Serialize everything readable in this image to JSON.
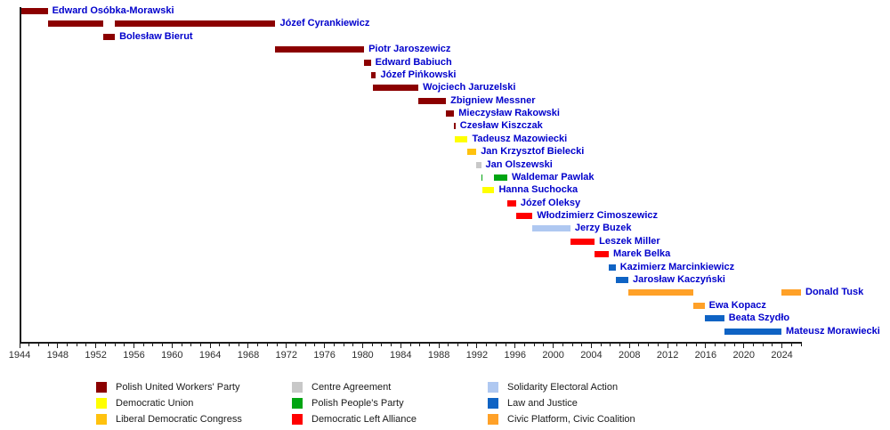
{
  "chart_data": {
    "type": "timeline",
    "title": "Prime Ministers of Poland by term and party",
    "x_axis": {
      "start": 1944,
      "end": 2026,
      "major_tick_step": 4,
      "minor_tick_step": 1,
      "tick_labels": [
        "1944",
        "1948",
        "1952",
        "1956",
        "1960",
        "1964",
        "1968",
        "1972",
        "1976",
        "1980",
        "1984",
        "1988",
        "1992",
        "1996",
        "2000",
        "2004",
        "2008",
        "2012",
        "2016",
        "2020",
        "2024"
      ]
    },
    "label_color": "#0000CC",
    "axis_color": "#1a1a1a",
    "parties": {
      "puwp": {
        "name": "Polish United Workers' Party",
        "color": "#8B0000"
      },
      "ud": {
        "name": "Democratic Union",
        "color": "#FFFF00"
      },
      "kld": {
        "name": "Liberal Democratic Congress",
        "color": "#FFC20E"
      },
      "pc": {
        "name": "Centre Agreement",
        "color": "#C8C8C8"
      },
      "psl": {
        "name": "Polish People's Party",
        "color": "#00A512"
      },
      "sld": {
        "name": "Democratic Left Alliance",
        "color": "#FF0000"
      },
      "aws": {
        "name": "Solidarity Electoral Action",
        "color": "#AFC8F1"
      },
      "pis": {
        "name": "Law and Justice",
        "color": "#0F63C4"
      },
      "po": {
        "name": "Civic Platform, Civic Coalition",
        "color": "#FFA128"
      }
    },
    "legend_columns": [
      [
        "puwp",
        "ud",
        "kld"
      ],
      [
        "pc",
        "psl",
        "sld"
      ],
      [
        "aws",
        "pis",
        "po"
      ]
    ],
    "rows": [
      {
        "name": "Edward Osóbka-Morawski",
        "party": "puwp",
        "terms": [
          [
            1944.2,
            1946.95
          ]
        ]
      },
      {
        "name": "Józef Cyrankiewicz",
        "party": "puwp",
        "terms": [
          [
            1946.95,
            1952.75
          ],
          [
            1954.0,
            1970.85
          ]
        ]
      },
      {
        "name": "Bolesław Bierut",
        "party": "puwp",
        "terms": [
          [
            1952.75,
            1954.0
          ]
        ]
      },
      {
        "name": "Piotr Jaroszewicz",
        "party": "puwp",
        "terms": [
          [
            1970.85,
            1980.15
          ]
        ]
      },
      {
        "name": "Edward Babiuch",
        "party": "puwp",
        "terms": [
          [
            1980.15,
            1980.85
          ]
        ]
      },
      {
        "name": "Józef Pińkowski",
        "party": "puwp",
        "terms": [
          [
            1980.85,
            1981.4
          ]
        ]
      },
      {
        "name": "Wojciech Jaruzelski",
        "party": "puwp",
        "terms": [
          [
            1981.1,
            1985.85
          ]
        ]
      },
      {
        "name": "Zbigniew Messner",
        "party": "puwp",
        "terms": [
          [
            1985.85,
            1988.75
          ]
        ]
      },
      {
        "name": "Mieczysław Rakowski",
        "party": "puwp",
        "terms": [
          [
            1988.75,
            1989.6
          ]
        ]
      },
      {
        "name": "Czesław Kiszczak",
        "party": "puwp",
        "terms": [
          [
            1989.6,
            1989.72
          ]
        ]
      },
      {
        "name": "Tadeusz Mazowiecki",
        "party": "ud",
        "terms": [
          [
            1989.65,
            1991.02
          ]
        ]
      },
      {
        "name": "Jan Krzysztof Bielecki",
        "party": "kld",
        "terms": [
          [
            1991.02,
            1991.93
          ]
        ]
      },
      {
        "name": "Jan Olszewski",
        "party": "pc",
        "terms": [
          [
            1991.93,
            1992.43
          ]
        ]
      },
      {
        "name": "Waldemar Pawlak",
        "party": "psl",
        "terms": [
          [
            1992.43,
            1992.55
          ],
          [
            1993.82,
            1995.18
          ]
        ]
      },
      {
        "name": "Hanna Suchocka",
        "party": "ud",
        "terms": [
          [
            1992.55,
            1993.82
          ]
        ]
      },
      {
        "name": "Józef Oleksy",
        "party": "sld",
        "terms": [
          [
            1995.18,
            1996.1
          ]
        ]
      },
      {
        "name": "Włodzimierz Cimoszewicz",
        "party": "sld",
        "terms": [
          [
            1996.1,
            1997.83
          ]
        ]
      },
      {
        "name": "Jerzy Buzek",
        "party": "aws",
        "terms": [
          [
            1997.83,
            2001.8
          ]
        ]
      },
      {
        "name": "Leszek Miller",
        "party": "sld",
        "terms": [
          [
            2001.8,
            2004.35
          ]
        ]
      },
      {
        "name": "Marek Belka",
        "party": "sld",
        "terms": [
          [
            2004.35,
            2005.83
          ]
        ]
      },
      {
        "name": "Kazimierz Marcinkiewicz",
        "party": "pis",
        "terms": [
          [
            2005.83,
            2006.55
          ]
        ]
      },
      {
        "name": "Jarosław Kaczyński",
        "party": "pis",
        "terms": [
          [
            2006.55,
            2007.88
          ]
        ]
      },
      {
        "name": "Donald Tusk",
        "party": "po",
        "terms": [
          [
            2007.88,
            2014.73
          ],
          [
            2023.95,
            2026.0
          ]
        ]
      },
      {
        "name": "Ewa Kopacz",
        "party": "po",
        "terms": [
          [
            2014.73,
            2015.88
          ]
        ]
      },
      {
        "name": "Beata Szydło",
        "party": "pis",
        "terms": [
          [
            2015.88,
            2017.94
          ]
        ]
      },
      {
        "name": "Mateusz Morawiecki",
        "party": "pis",
        "terms": [
          [
            2017.94,
            2023.95
          ]
        ]
      }
    ]
  }
}
